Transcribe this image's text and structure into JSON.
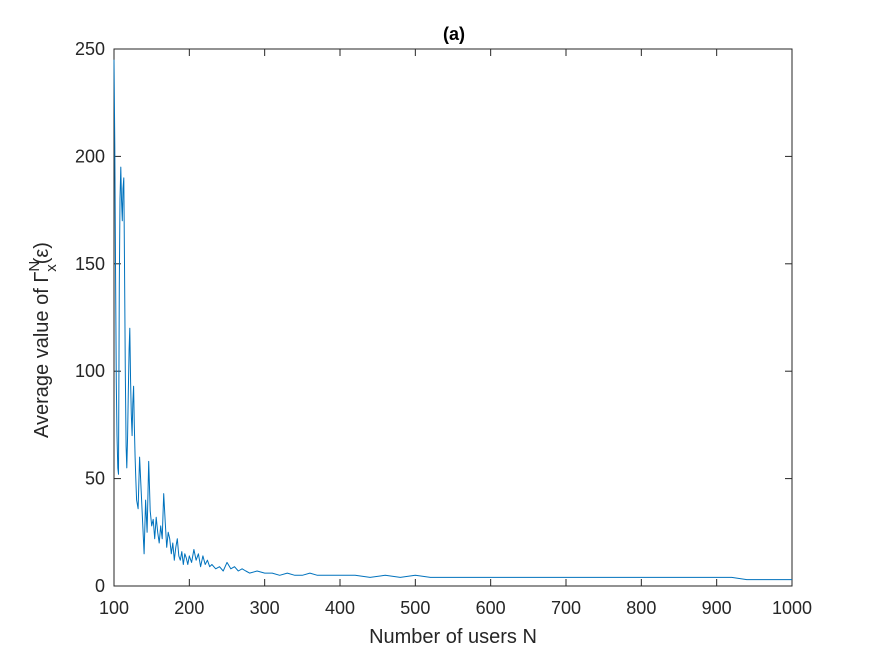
{
  "chart_data": {
    "type": "line",
    "title": "(a)",
    "xlabel": "Number of users N",
    "ylabel": {
      "prefix": "Average value of Γ",
      "superscript": "N",
      "subscript": "x",
      "suffix": "(ε)"
    },
    "xlim": [
      100,
      1000
    ],
    "ylim": [
      0,
      250
    ],
    "xticks": [
      "100",
      "200",
      "300",
      "400",
      "500",
      "600",
      "700",
      "800",
      "900",
      "1000"
    ],
    "yticks": [
      "0",
      "50",
      "100",
      "150",
      "200",
      "250"
    ],
    "grid": false,
    "series": [
      {
        "color": "#0072BD",
        "x": [
          100,
          101,
          102,
          103,
          104,
          105,
          106,
          107,
          108,
          109,
          110,
          111,
          112,
          113,
          114,
          115,
          116,
          117,
          118,
          119,
          120,
          121,
          122,
          123,
          124,
          125,
          126,
          127,
          128,
          129,
          130,
          132,
          134,
          136,
          138,
          140,
          142,
          144,
          146,
          148,
          150,
          152,
          154,
          156,
          158,
          160,
          162,
          164,
          166,
          168,
          170,
          172,
          174,
          176,
          178,
          180,
          182,
          184,
          186,
          188,
          190,
          192,
          194,
          196,
          198,
          200,
          203,
          206,
          209,
          212,
          215,
          218,
          221,
          224,
          227,
          230,
          235,
          240,
          245,
          250,
          255,
          260,
          265,
          270,
          275,
          280,
          290,
          300,
          310,
          320,
          330,
          340,
          350,
          360,
          370,
          380,
          390,
          400,
          420,
          440,
          460,
          480,
          500,
          520,
          540,
          560,
          580,
          600,
          620,
          640,
          660,
          680,
          700,
          720,
          740,
          760,
          780,
          800,
          820,
          840,
          860,
          880,
          900,
          920,
          940,
          960,
          980,
          1000
        ],
        "y": [
          245,
          205,
          150,
          95,
          70,
          55,
          52,
          140,
          180,
          195,
          180,
          170,
          185,
          190,
          150,
          100,
          65,
          55,
          70,
          90,
          110,
          120,
          95,
          80,
          70,
          85,
          93,
          75,
          60,
          50,
          40,
          36,
          60,
          45,
          30,
          15,
          40,
          25,
          58,
          35,
          28,
          31,
          22,
          32,
          25,
          20,
          28,
          22,
          43,
          30,
          18,
          25,
          22,
          15,
          20,
          12,
          18,
          22,
          14,
          12,
          16,
          10,
          15,
          13,
          10,
          14,
          11,
          17,
          12,
          15,
          9,
          14,
          10,
          12,
          9,
          10,
          8,
          9,
          7,
          11,
          8,
          9,
          7,
          8,
          7,
          6,
          7,
          6,
          6,
          5,
          6,
          5,
          5,
          6,
          5,
          5,
          5,
          5,
          5,
          4,
          5,
          4,
          5,
          4,
          4,
          4,
          4,
          4,
          4,
          4,
          4,
          4,
          4,
          4,
          4,
          4,
          4,
          4,
          4,
          4,
          4,
          4,
          4,
          4,
          3,
          3,
          3,
          3
        ]
      }
    ]
  }
}
